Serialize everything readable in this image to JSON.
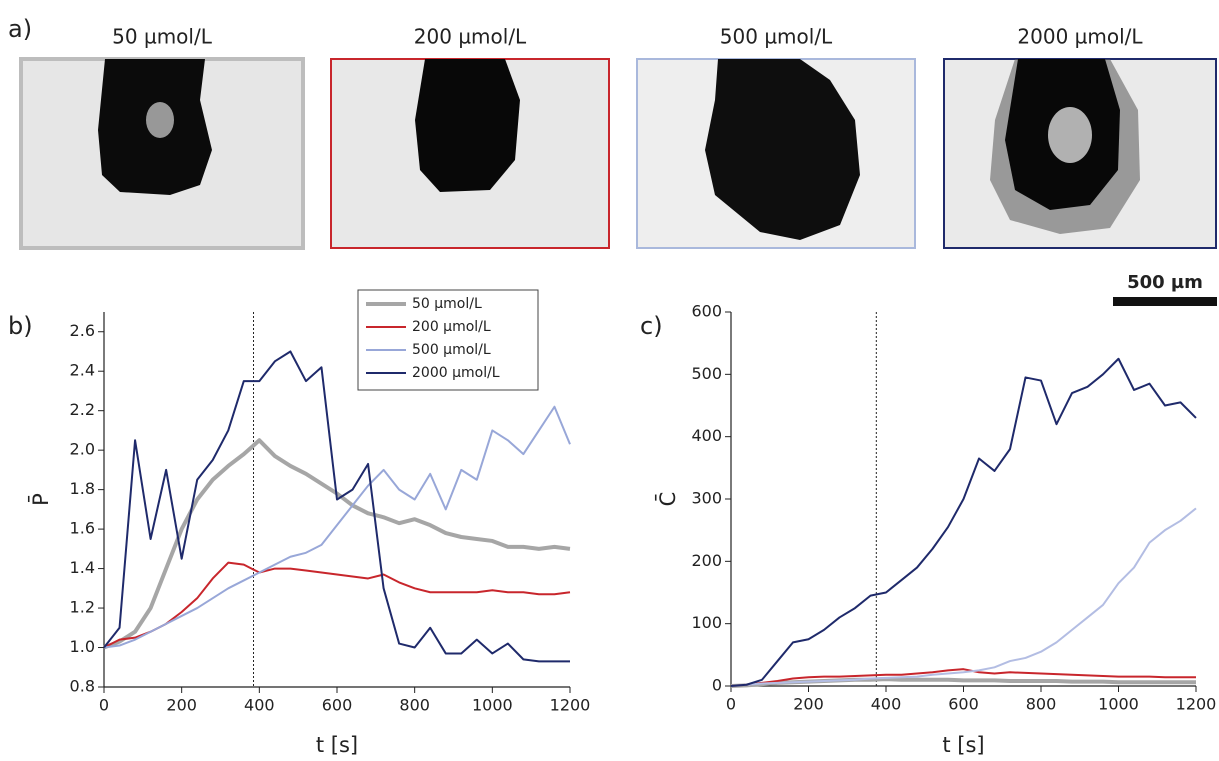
{
  "panel_a": {
    "label": "a)",
    "images": [
      {
        "title": "50 µmol/L",
        "border": "#bdbdbd"
      },
      {
        "title": "200 µmol/L",
        "border": "#c8262c"
      },
      {
        "title": "500 µmol/L",
        "border": "#a9b8dc"
      },
      {
        "title": "2000 µmol/L",
        "border": "#1f2a6b"
      }
    ],
    "scale_bar": "500 µm"
  },
  "chart_data": [
    {
      "type": "line",
      "label": "b)",
      "xlabel": "t [s]",
      "ylabel": "P̄",
      "xlim": [
        0,
        1200
      ],
      "xticks": [
        0,
        200,
        400,
        600,
        800,
        1000,
        1200
      ],
      "ylim": [
        0.8,
        2.7
      ],
      "yticks": [
        0.8,
        {
          "value": 1,
          "label": "1.0"
        },
        1.2,
        1.4,
        1.6,
        1.8,
        {
          "value": 2,
          "label": "2.0"
        },
        2.2,
        2.4,
        2.6
      ],
      "vline": 385,
      "x": [
        0,
        40,
        80,
        120,
        160,
        200,
        240,
        280,
        320,
        360,
        400,
        440,
        480,
        520,
        560,
        600,
        640,
        680,
        720,
        760,
        800,
        840,
        880,
        920,
        960,
        1000,
        1040,
        1080,
        1120,
        1160,
        1200
      ],
      "series": [
        {
          "name": "50 µmol/L",
          "color": "#a6a6a6",
          "width": 4,
          "values": [
            1.0,
            1.03,
            1.08,
            1.2,
            1.4,
            1.6,
            1.75,
            1.85,
            1.92,
            1.98,
            2.05,
            1.97,
            1.92,
            1.88,
            1.83,
            1.78,
            1.72,
            1.68,
            1.66,
            1.63,
            1.65,
            1.62,
            1.58,
            1.56,
            1.55,
            1.54,
            1.51,
            1.51,
            1.5,
            1.51,
            1.5
          ]
        },
        {
          "name": "200 µmol/L",
          "color": "#c8262c",
          "width": 2,
          "values": [
            1.0,
            1.04,
            1.05,
            1.08,
            1.12,
            1.18,
            1.25,
            1.35,
            1.43,
            1.42,
            1.38,
            1.4,
            1.4,
            1.39,
            1.38,
            1.37,
            1.36,
            1.35,
            1.37,
            1.33,
            1.3,
            1.28,
            1.28,
            1.28,
            1.28,
            1.29,
            1.28,
            1.28,
            1.27,
            1.27,
            1.28
          ]
        },
        {
          "name": "500 µmol/L",
          "color": "#98a7d8",
          "width": 2,
          "values": [
            1.0,
            1.01,
            1.04,
            1.08,
            1.12,
            1.16,
            1.2,
            1.25,
            1.3,
            1.34,
            1.38,
            1.42,
            1.46,
            1.48,
            1.52,
            1.62,
            1.72,
            1.82,
            1.9,
            1.8,
            1.75,
            1.88,
            1.7,
            1.9,
            1.85,
            2.1,
            2.05,
            1.98,
            2.1,
            2.22,
            2.03
          ]
        },
        {
          "name": "2000 µmol/L",
          "color": "#1f2a6b",
          "width": 2,
          "values": [
            1.0,
            1.1,
            2.05,
            1.55,
            1.9,
            1.45,
            1.85,
            1.95,
            2.1,
            2.35,
            2.35,
            2.45,
            2.5,
            2.35,
            2.42,
            1.75,
            1.8,
            1.93,
            1.3,
            1.02,
            1.0,
            1.1,
            0.97,
            0.97,
            1.04,
            0.97,
            1.02,
            0.94,
            0.93,
            0.93,
            0.93
          ]
        }
      ]
    },
    {
      "type": "line",
      "label": "c)",
      "xlabel": "t [s]",
      "ylabel": "C̄",
      "xlim": [
        0,
        1200
      ],
      "xticks": [
        0,
        200,
        400,
        600,
        800,
        1000,
        1200
      ],
      "ylim": [
        0,
        600
      ],
      "yticks": [
        0,
        100,
        200,
        300,
        400,
        500,
        600
      ],
      "vline": 375,
      "x": [
        0,
        40,
        80,
        120,
        160,
        200,
        240,
        280,
        320,
        360,
        400,
        440,
        480,
        520,
        560,
        600,
        640,
        680,
        720,
        760,
        800,
        840,
        880,
        920,
        960,
        1000,
        1040,
        1080,
        1120,
        1160,
        1200
      ],
      "series": [
        {
          "color": "#a6a6a6",
          "width": 4,
          "values": [
            0,
            1,
            3,
            5,
            6,
            7,
            8,
            9,
            10,
            10,
            11,
            10,
            10,
            10,
            10,
            9,
            9,
            9,
            8,
            8,
            8,
            8,
            7,
            7,
            7,
            6,
            6,
            6,
            6,
            6,
            6
          ]
        },
        {
          "color": "#c8262c",
          "width": 2,
          "values": [
            0,
            2,
            5,
            8,
            12,
            14,
            15,
            15,
            16,
            17,
            18,
            18,
            20,
            22,
            25,
            27,
            22,
            20,
            22,
            21,
            20,
            19,
            18,
            17,
            16,
            15,
            15,
            15,
            14,
            14,
            14
          ]
        },
        {
          "color": "#b3bde3",
          "width": 2,
          "values": [
            0,
            2,
            4,
            5,
            6,
            7,
            8,
            9,
            10,
            12,
            13,
            14,
            15,
            18,
            20,
            22,
            25,
            30,
            40,
            45,
            55,
            70,
            90,
            110,
            130,
            165,
            190,
            230,
            250,
            265,
            285
          ]
        },
        {
          "color": "#1f2a6b",
          "width": 2,
          "values": [
            0,
            2,
            10,
            40,
            70,
            75,
            90,
            110,
            125,
            145,
            150,
            170,
            190,
            220,
            255,
            300,
            365,
            345,
            380,
            495,
            490,
            420,
            470,
            480,
            500,
            525,
            475,
            485,
            450,
            455,
            430
          ]
        }
      ]
    }
  ]
}
